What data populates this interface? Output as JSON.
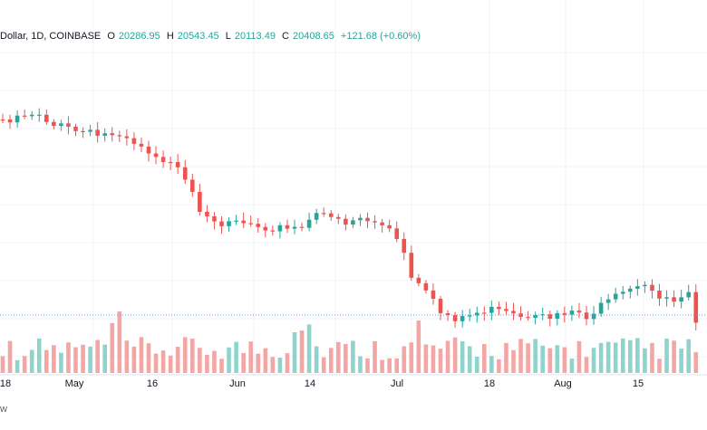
{
  "legend": {
    "symbol": "Dollar, 1D, COINBASE",
    "open_key": "O",
    "open": "20286.95",
    "high_key": "H",
    "high": "20543.45",
    "low_key": "L",
    "low": "20113.49",
    "close_key": "C",
    "close": "20408.65",
    "change": "+121.68 (+0.60%)"
  },
  "footer_text": "w",
  "colors": {
    "up": "#26a69a",
    "down": "#ef5350",
    "vol_up": "#8fd3cc",
    "vol_down": "#f4a6a5",
    "grid": "#f0f3fa",
    "axis_text": "#131722"
  },
  "chart_data": {
    "type": "candlestick",
    "title": "",
    "xlabel": "",
    "ylabel": "",
    "x_tick_labels": [
      "18",
      "May",
      "16",
      "Jun",
      "14",
      "Jul",
      "18",
      "Aug",
      "15"
    ],
    "grid": true,
    "last_price_line": true,
    "ohlc_pattern": [
      {
        "o": 0.5,
        "h": 1.2,
        "l": 0.3,
        "c": 1.0
      },
      {
        "o": 1.0,
        "h": 1.6,
        "l": 0.8,
        "c": 0.9
      },
      {
        "o": 0.9,
        "h": 1.1,
        "l": 0.0,
        "c": 0.2
      }
    ]
  }
}
